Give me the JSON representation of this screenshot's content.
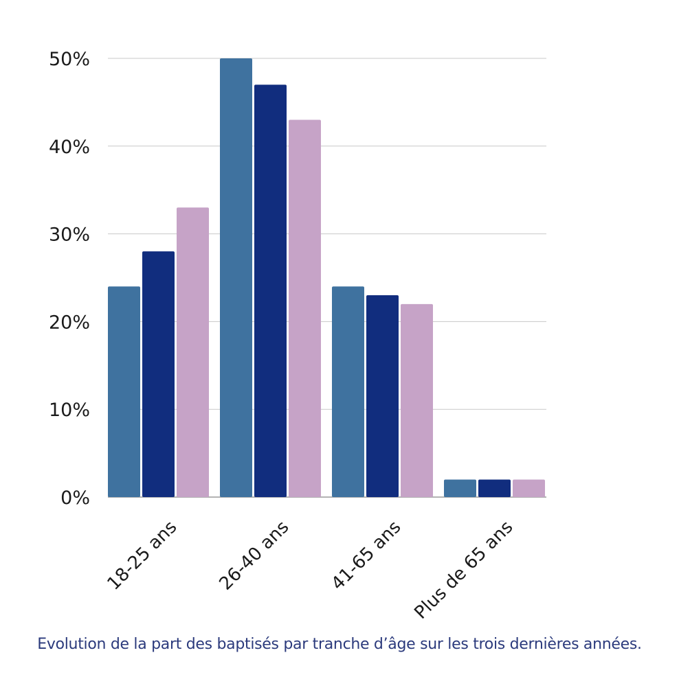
{
  "chart_data": {
    "type": "bar",
    "title": "",
    "xlabel": "",
    "ylabel": "",
    "categories": [
      "18-25 ans",
      "26-40 ans",
      "41-65 ans",
      "Plus de 65 ans"
    ],
    "series": [
      {
        "values": [
          24,
          50,
          24,
          2
        ],
        "color": "#3f729f"
      },
      {
        "values": [
          28,
          47,
          23,
          2
        ],
        "color": "#112d7e"
      },
      {
        "values": [
          33,
          43,
          22,
          2
        ],
        "color": "#c6a3c7"
      }
    ],
    "yticks": [
      "0%",
      "10%",
      "20%",
      "30%",
      "40%",
      "50%"
    ],
    "ylim": [
      0,
      50
    ],
    "grid": true,
    "legend": "none"
  },
  "caption": "Evolution de la part des baptisés par tranche d’âge sur les trois dernières années."
}
